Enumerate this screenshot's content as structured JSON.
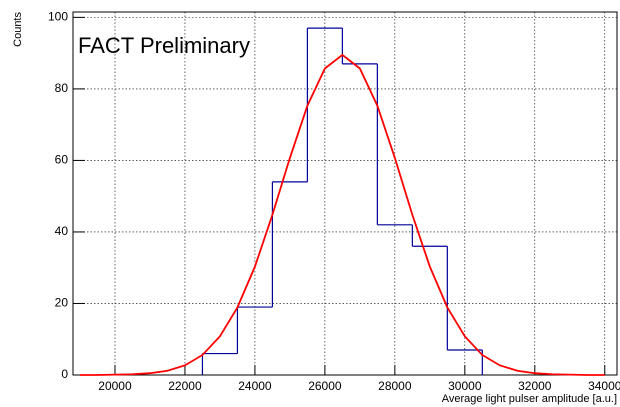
{
  "chart_data": {
    "type": "histogram",
    "annotation": "FACT Preliminary",
    "xlabel": "Average light pulser amplitude [a.u.]",
    "ylabel": "Counts",
    "bins": [
      22500,
      23500,
      24500,
      25500,
      26500,
      27500,
      28500,
      29500,
      30500
    ],
    "counts": [
      6,
      19,
      54,
      97,
      87,
      42,
      36,
      7
    ],
    "color": "#000099",
    "fit": {
      "color": "#ff0000",
      "x": [
        19000,
        19500,
        20000,
        20500,
        21000,
        21500,
        22000,
        22500,
        23000,
        23500,
        24000,
        24500,
        25000,
        25500,
        26000,
        26500,
        27000,
        27500,
        28000,
        28500,
        29000,
        29500,
        30000,
        30500,
        31000,
        31500,
        32000,
        32500,
        33000,
        33500,
        34000
      ],
      "values": [
        0,
        0,
        0.1,
        0.2,
        0.5,
        1.2,
        2.7,
        5.6,
        10.8,
        18.9,
        30.3,
        44.8,
        60.7,
        75.3,
        85.7,
        89.5,
        85.7,
        75.3,
        60.7,
        44.8,
        30.3,
        18.9,
        10.8,
        5.6,
        2.7,
        1.2,
        0.5,
        0.2,
        0.1,
        0,
        0
      ]
    },
    "xlim": [
      18800,
      34350
    ],
    "ylim": [
      0,
      101.5
    ],
    "xticks": [
      20000,
      22000,
      24000,
      26000,
      28000,
      30000,
      32000,
      34000
    ],
    "yticks": [
      0,
      20,
      40,
      60,
      80,
      100
    ],
    "grid": true
  }
}
